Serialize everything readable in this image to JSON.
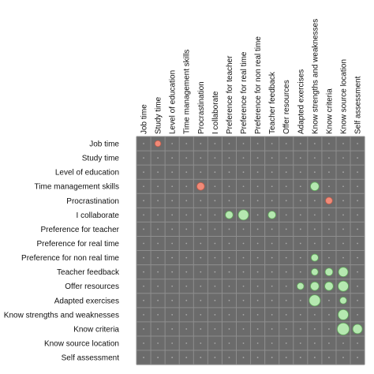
{
  "chart_data": {
    "type": "heatmap",
    "title": "",
    "variables": [
      "Job time",
      "Study time",
      "Level of education",
      "Time management skills",
      "Procrastination",
      "I collaborate",
      "Preference for teacher",
      "Preference for real time",
      "Preference for non real time",
      "Teacher feedback",
      "Offer resources",
      "Adapted exercises",
      "Know strengths and weaknesses",
      "Know criteria",
      "Know source location",
      "Self assessment"
    ],
    "row_labels": [
      "Job time",
      "Study time",
      "Level of education",
      "Time management skills",
      "Procrastination",
      "I collaborate",
      "Preference for teacher",
      "Preference for real time",
      "Preference for non real time",
      "Teacher feedback",
      "Offer resources",
      "Adapted exercises",
      "Know strengths and weaknesses",
      "Know criteria",
      "Know source location",
      "Self assessment"
    ],
    "column_labels": [
      "Job time",
      "Study time",
      "Level of education",
      "Time management skills",
      "Procrastination",
      "I collaborate",
      "Preference for teacher",
      "Preference for real time",
      "Preference for non real time",
      "Teacher feedback",
      "Offer resources",
      "Adapted exercises",
      "Know strengths and weaknesses",
      "Know criteria",
      "Know source location",
      "Self assessment"
    ],
    "cells": [
      {
        "row": 0,
        "col": 1,
        "magnitude": 0.35,
        "sign": "negative"
      },
      {
        "row": 3,
        "col": 4,
        "magnitude": 0.45,
        "sign": "negative"
      },
      {
        "row": 3,
        "col": 12,
        "magnitude": 0.5,
        "sign": "positive"
      },
      {
        "row": 4,
        "col": 13,
        "magnitude": 0.4,
        "sign": "negative"
      },
      {
        "row": 5,
        "col": 6,
        "magnitude": 0.45,
        "sign": "positive"
      },
      {
        "row": 5,
        "col": 7,
        "magnitude": 0.6,
        "sign": "positive"
      },
      {
        "row": 5,
        "col": 9,
        "magnitude": 0.45,
        "sign": "positive"
      },
      {
        "row": 8,
        "col": 12,
        "magnitude": 0.42,
        "sign": "positive"
      },
      {
        "row": 9,
        "col": 12,
        "magnitude": 0.4,
        "sign": "positive"
      },
      {
        "row": 9,
        "col": 13,
        "magnitude": 0.45,
        "sign": "positive"
      },
      {
        "row": 9,
        "col": 14,
        "magnitude": 0.55,
        "sign": "positive"
      },
      {
        "row": 10,
        "col": 11,
        "magnitude": 0.4,
        "sign": "positive"
      },
      {
        "row": 10,
        "col": 12,
        "magnitude": 0.5,
        "sign": "positive"
      },
      {
        "row": 10,
        "col": 13,
        "magnitude": 0.5,
        "sign": "positive"
      },
      {
        "row": 10,
        "col": 14,
        "magnitude": 0.6,
        "sign": "positive"
      },
      {
        "row": 11,
        "col": 12,
        "magnitude": 0.65,
        "sign": "positive"
      },
      {
        "row": 11,
        "col": 14,
        "magnitude": 0.4,
        "sign": "positive"
      },
      {
        "row": 12,
        "col": 14,
        "magnitude": 0.6,
        "sign": "positive"
      },
      {
        "row": 13,
        "col": 14,
        "magnitude": 0.7,
        "sign": "positive"
      },
      {
        "row": 13,
        "col": 15,
        "magnitude": 0.55,
        "sign": "positive"
      }
    ],
    "grid": true,
    "colors": {
      "background": "#6b6b6b",
      "gridline": "#8e8e8e",
      "dot": "#a8a8a8",
      "positive_fill": "#b5e8b0",
      "positive_stroke": "#5fa65a",
      "negative_fill": "#f08a78",
      "negative_stroke": "#c05a48"
    }
  }
}
